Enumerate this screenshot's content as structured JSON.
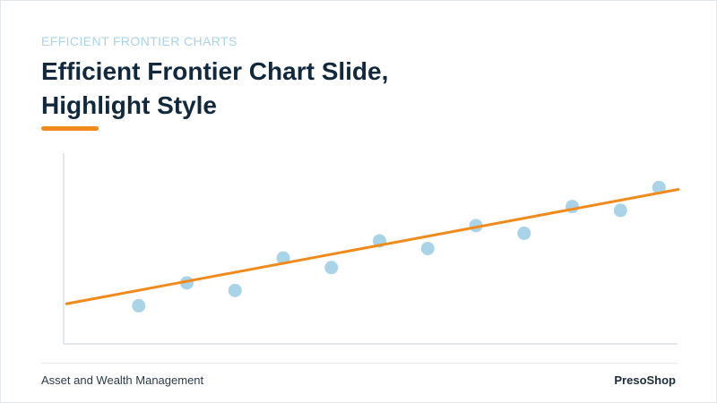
{
  "slide": {
    "kicker": "EFFICIENT FRONTIER CHARTS",
    "title_line1": "Efficient Frontier Chart Slide,",
    "title_line2": "Highlight Style",
    "footer_left": "Asset and Wealth Management",
    "footer_right": "PresoShop"
  },
  "colors": {
    "accent": "#f08a1c",
    "points": "#a9d3e6",
    "title": "#12293d",
    "axis": "#e3e8ec"
  },
  "chart_data": {
    "type": "scatter",
    "title": "",
    "xlabel": "",
    "ylabel": "",
    "xlim": [
      0,
      12
    ],
    "ylim": [
      0,
      10
    ],
    "grid": false,
    "legend": "none",
    "points": [
      {
        "x": 1.0,
        "y": 2.0
      },
      {
        "x": 2.0,
        "y": 3.2
      },
      {
        "x": 3.0,
        "y": 2.8
      },
      {
        "x": 4.0,
        "y": 4.5
      },
      {
        "x": 5.0,
        "y": 4.0
      },
      {
        "x": 6.0,
        "y": 5.4
      },
      {
        "x": 7.0,
        "y": 5.0
      },
      {
        "x": 8.0,
        "y": 6.2
      },
      {
        "x": 9.0,
        "y": 5.8
      },
      {
        "x": 10.0,
        "y": 7.2
      },
      {
        "x": 11.0,
        "y": 7.0
      },
      {
        "x": 11.8,
        "y": 8.2
      }
    ],
    "trendline": {
      "x": [
        -0.5,
        12.2
      ],
      "y": [
        2.1,
        8.1
      ]
    }
  }
}
